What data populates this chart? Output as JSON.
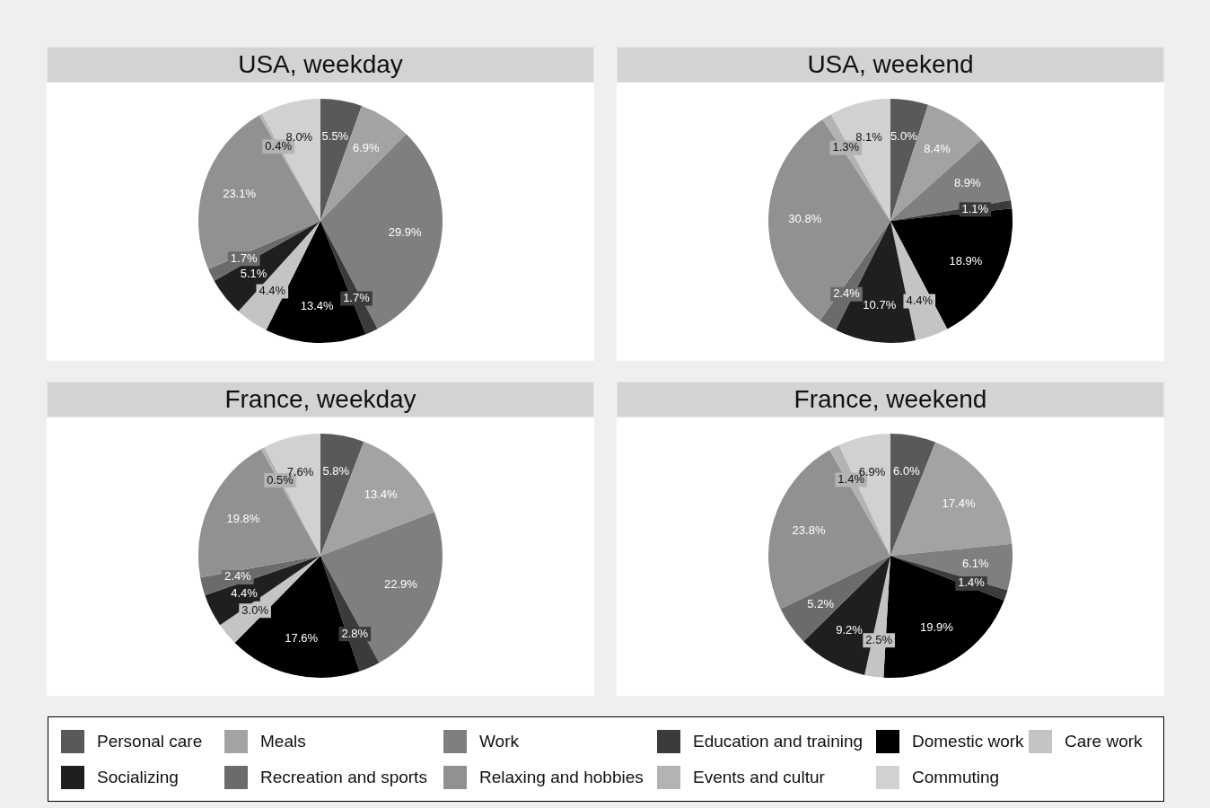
{
  "chart_data": [
    {
      "type": "pie",
      "title": "USA, weekday",
      "legend": "bottom",
      "categories": [
        "Personal care",
        "Meals",
        "Work",
        "Education and training",
        "Domestic work",
        "Care work",
        "Socializing",
        "Recreation and sports",
        "Relaxing and hobbies",
        "Events and cultur",
        "Commuting"
      ],
      "colors": [
        "#595959",
        "#a3a3a3",
        "#7f7f7f",
        "#3b3b3b",
        "#000000",
        "#c4c4c4",
        "#1f1f1f",
        "#6b6b6b",
        "#919191",
        "#b3b3b3",
        "#d1d1d1"
      ],
      "values": [
        5.5,
        6.9,
        29.9,
        1.7,
        13.4,
        4.4,
        5.1,
        1.7,
        23.1,
        0.4,
        8.0
      ],
      "value_labels": [
        "5.5%",
        "6.9%",
        "29.9%",
        "1.7%",
        "13.4%",
        "4.4%",
        "5.1%",
        "1.7%",
        "23.1%",
        "0.4%",
        "8.0%"
      ]
    },
    {
      "type": "pie",
      "title": "USA, weekend",
      "colors": [
        "#595959",
        "#a3a3a3",
        "#7f7f7f",
        "#3b3b3b",
        "#000000",
        "#c4c4c4",
        "#1f1f1f",
        "#6b6b6b",
        "#919191",
        "#b3b3b3",
        "#d1d1d1"
      ],
      "values": [
        5.0,
        8.4,
        8.9,
        1.1,
        18.9,
        4.4,
        10.7,
        2.4,
        30.8,
        1.3,
        8.1
      ],
      "value_labels": [
        "5.0%",
        "8.4%",
        "8.9%",
        "1.1%",
        "18.9%",
        "4.4%",
        "10.7%",
        "2.4%",
        "30.8%",
        "1.3%",
        "8.1%"
      ]
    },
    {
      "type": "pie",
      "title": "France, weekday",
      "colors": [
        "#595959",
        "#a3a3a3",
        "#7f7f7f",
        "#3b3b3b",
        "#000000",
        "#c4c4c4",
        "#1f1f1f",
        "#6b6b6b",
        "#919191",
        "#b3b3b3",
        "#d1d1d1"
      ],
      "values": [
        5.8,
        13.4,
        22.9,
        2.8,
        17.6,
        3.0,
        4.4,
        2.4,
        19.8,
        0.5,
        7.6
      ],
      "value_labels": [
        "5.8%",
        "13.4%",
        "22.9%",
        "2.8%",
        "17.6%",
        "3.0%",
        "4.4%",
        "2.4%",
        "19.8%",
        "0.5%",
        "7.6%"
      ]
    },
    {
      "type": "pie",
      "title": "France, weekend",
      "colors": [
        "#595959",
        "#a3a3a3",
        "#7f7f7f",
        "#3b3b3b",
        "#000000",
        "#c4c4c4",
        "#1f1f1f",
        "#6b6b6b",
        "#919191",
        "#b3b3b3",
        "#d1d1d1"
      ],
      "values": [
        6.0,
        17.4,
        6.1,
        1.4,
        19.9,
        2.5,
        9.2,
        5.2,
        23.8,
        1.4,
        6.9
      ],
      "value_labels": [
        "6.0%",
        "17.4%",
        "6.1%",
        "1.4%",
        "19.9%",
        "2.5%",
        "9.2%",
        "5.2%",
        "23.8%",
        "1.4%",
        "6.9%"
      ]
    }
  ]
}
